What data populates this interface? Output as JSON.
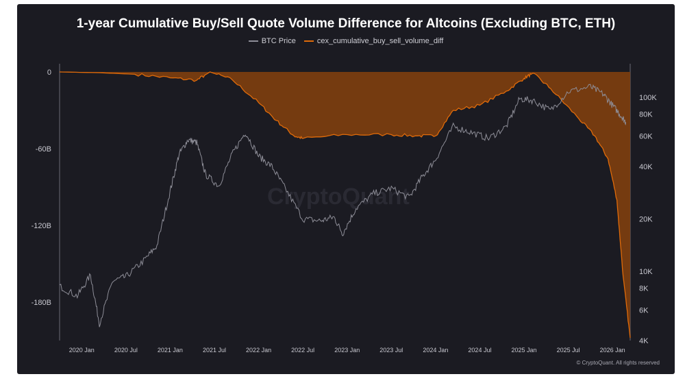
{
  "title": "1-year Cumulative Buy/Sell Quote Volume Difference for Altcoins (Excluding BTC, ETH)",
  "legend": {
    "series1": "BTC Price",
    "series2": "cex_cumulative_buy_sell_volume_diff"
  },
  "copyright": "© CryptoQuant. All rights reserved",
  "watermark": "CryptoQuant",
  "colors": {
    "background": "#1b1b22",
    "btc": "#8e8e98",
    "diff_line": "#e06b0a",
    "diff_fill": "#7a3d10"
  },
  "chart_data": {
    "type": "area",
    "x_ticks": [
      "2020 Jan",
      "2020 Jul",
      "2021 Jan",
      "2021 Jul",
      "2022 Jan",
      "2022 Jul",
      "2023 Jan",
      "2023 Jul",
      "2024 Jan",
      "2024 Jul",
      "2025 Jan",
      "2025 Jul",
      "2026 Jan"
    ],
    "y_left_ticks": [
      "0",
      "-60B",
      "-120B",
      "-180B"
    ],
    "y_left_values": [
      0,
      -60,
      -120,
      -180
    ],
    "y_left_range": [
      -210,
      0
    ],
    "y_right_ticks": [
      "100K",
      "80K",
      "60K",
      "40K",
      "20K",
      "10K",
      "8K",
      "6K",
      "4K"
    ],
    "y_right_values": [
      100000,
      80000,
      60000,
      40000,
      20000,
      10000,
      8000,
      6000,
      4000
    ],
    "y_right_scale": "log",
    "y_right_range": [
      4000,
      140000
    ],
    "x_range": [
      2019.75,
      2026.2
    ],
    "series": [
      {
        "name": "cex_cumulative_buy_sell_volume_diff",
        "axis": "left",
        "unit": "B",
        "points": [
          [
            2019.75,
            0
          ],
          [
            2020.2,
            -0.6
          ],
          [
            2020.6,
            -1.8
          ],
          [
            2021.0,
            -4.6
          ],
          [
            2021.3,
            -6.5
          ],
          [
            2021.45,
            0
          ],
          [
            2021.7,
            -6
          ],
          [
            2022.0,
            -24
          ],
          [
            2022.2,
            -38
          ],
          [
            2022.4,
            -50
          ],
          [
            2022.5,
            -52
          ],
          [
            2023.0,
            -49
          ],
          [
            2023.5,
            -49
          ],
          [
            2023.8,
            -50
          ],
          [
            2024.0,
            -50
          ],
          [
            2024.2,
            -30
          ],
          [
            2024.5,
            -26
          ],
          [
            2024.8,
            -15
          ],
          [
            2025.0,
            -5
          ],
          [
            2025.1,
            -1
          ],
          [
            2025.3,
            -13
          ],
          [
            2025.6,
            -35
          ],
          [
            2025.8,
            -50
          ],
          [
            2025.95,
            -68
          ],
          [
            2026.05,
            -100
          ],
          [
            2026.12,
            -160
          ],
          [
            2026.2,
            -208
          ]
        ]
      },
      {
        "name": "BTC Price",
        "axis": "right",
        "unit": "USD",
        "points": [
          [
            2019.75,
            8200
          ],
          [
            2019.95,
            7200
          ],
          [
            2020.1,
            9500
          ],
          [
            2020.2,
            5000
          ],
          [
            2020.35,
            8800
          ],
          [
            2020.5,
            9300
          ],
          [
            2020.7,
            11500
          ],
          [
            2020.85,
            14000
          ],
          [
            2021.0,
            29000
          ],
          [
            2021.1,
            47000
          ],
          [
            2021.2,
            57000
          ],
          [
            2021.3,
            55000
          ],
          [
            2021.4,
            36000
          ],
          [
            2021.55,
            31000
          ],
          [
            2021.7,
            47000
          ],
          [
            2021.85,
            63000
          ],
          [
            2022.0,
            46000
          ],
          [
            2022.15,
            40000
          ],
          [
            2022.3,
            30000
          ],
          [
            2022.5,
            20000
          ],
          [
            2022.7,
            19500
          ],
          [
            2022.85,
            20500
          ],
          [
            2022.95,
            16500
          ],
          [
            2023.1,
            23000
          ],
          [
            2023.3,
            28000
          ],
          [
            2023.5,
            30000
          ],
          [
            2023.7,
            26500
          ],
          [
            2023.85,
            35000
          ],
          [
            2024.0,
            44000
          ],
          [
            2024.2,
            68000
          ],
          [
            2024.4,
            63000
          ],
          [
            2024.6,
            58000
          ],
          [
            2024.8,
            68000
          ],
          [
            2024.95,
            98000
          ],
          [
            2025.1,
            96000
          ],
          [
            2025.3,
            84000
          ],
          [
            2025.5,
            108000
          ],
          [
            2025.75,
            115000
          ],
          [
            2025.9,
            104000
          ],
          [
            2026.0,
            90000
          ],
          [
            2026.1,
            78000
          ],
          [
            2026.15,
            72000
          ]
        ]
      }
    ],
    "grid": false,
    "legend_position": "top-center"
  }
}
